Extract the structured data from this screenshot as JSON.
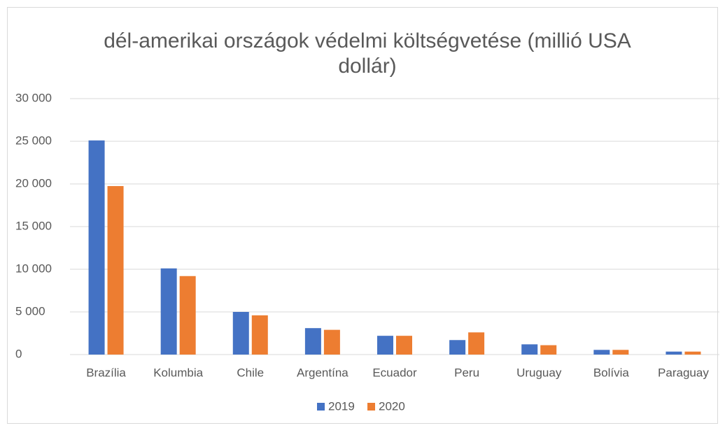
{
  "chart_data": {
    "type": "bar",
    "title": [
      "dél-amerikai országok védelmi költségvetése (millió USA",
      "dollár)"
    ],
    "categories": [
      "Brazília",
      "Kolumbia",
      "Chile",
      "Argentína",
      "Ecuador",
      "Peru",
      "Uruguay",
      "Bolívia",
      "Paraguay"
    ],
    "series": [
      {
        "name": "2019",
        "color": "#4472c4",
        "values": [
          25100,
          10100,
          5000,
          3100,
          2200,
          1700,
          1200,
          550,
          350
        ]
      },
      {
        "name": "2020",
        "color": "#ed7d31",
        "values": [
          19750,
          9200,
          4600,
          2900,
          2200,
          2600,
          1100,
          550,
          350
        ]
      }
    ],
    "ylim": [
      0,
      30000
    ],
    "yticks": [
      0,
      {
        "value": 5000,
        "label": "5 000"
      },
      {
        "value": 10000,
        "label": "10 000"
      },
      {
        "value": 15000,
        "label": "15 000"
      },
      {
        "value": 20000,
        "label": "20 000"
      },
      {
        "value": 25000,
        "label": "25 000"
      },
      {
        "value": 30000,
        "label": "30 000"
      }
    ],
    "grid": true,
    "legend": "bottom"
  }
}
